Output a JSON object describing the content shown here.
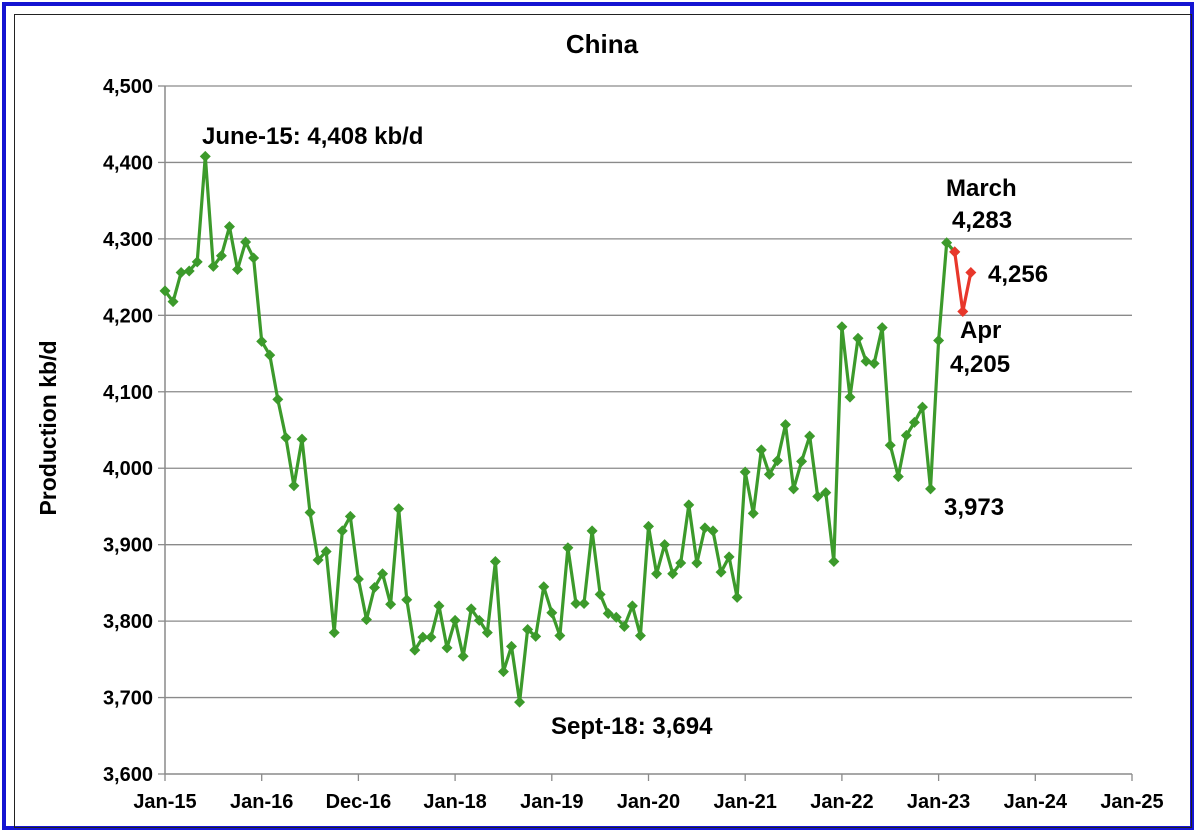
{
  "chart_data": {
    "type": "line",
    "title": "China",
    "xlabel": "",
    "ylabel": "Production kb/d",
    "ylim": [
      3600,
      4500
    ],
    "yticks": [
      "3,600",
      "3,700",
      "3,800",
      "3,900",
      "4,000",
      "4,100",
      "4,200",
      "4,300",
      "4,400",
      "4,500"
    ],
    "xticks": [
      "Jan-15",
      "Jan-16",
      "Dec-16",
      "Jan-18",
      "Jan-19",
      "Jan-20",
      "Jan-21",
      "Jan-22",
      "Jan-23",
      "Jan-24",
      "Jan-25"
    ],
    "xlim": [
      "2015-01",
      "2025-01"
    ],
    "grid": "horizontal",
    "colors": {
      "main": "#3c9a2b",
      "recent": "#e8372b",
      "frame": "#1414d2"
    },
    "series": [
      {
        "color": "#3c9a2b",
        "marker": "diamond",
        "x": [
          "2015-01",
          "2015-02",
          "2015-03",
          "2015-04",
          "2015-05",
          "2015-06",
          "2015-07",
          "2015-08",
          "2015-09",
          "2015-10",
          "2015-11",
          "2015-12",
          "2016-01",
          "2016-02",
          "2016-03",
          "2016-04",
          "2016-05",
          "2016-06",
          "2016-07",
          "2016-08",
          "2016-09",
          "2016-10",
          "2016-11",
          "2016-12",
          "2017-01",
          "2017-02",
          "2017-03",
          "2017-04",
          "2017-05",
          "2017-06",
          "2017-07",
          "2017-08",
          "2017-09",
          "2017-10",
          "2017-11",
          "2017-12",
          "2018-01",
          "2018-02",
          "2018-03",
          "2018-04",
          "2018-05",
          "2018-06",
          "2018-07",
          "2018-08",
          "2018-09",
          "2018-10",
          "2018-11",
          "2018-12",
          "2019-01",
          "2019-02",
          "2019-03",
          "2019-04",
          "2019-05",
          "2019-06",
          "2019-07",
          "2019-08",
          "2019-09",
          "2019-10",
          "2019-11",
          "2019-12",
          "2020-01",
          "2020-02",
          "2020-03",
          "2020-04",
          "2020-05",
          "2020-06",
          "2020-07",
          "2020-08",
          "2020-09",
          "2020-10",
          "2020-11",
          "2020-12",
          "2021-01",
          "2021-02",
          "2021-03",
          "2021-04",
          "2021-05",
          "2021-06",
          "2021-07",
          "2021-08",
          "2021-09",
          "2021-10",
          "2021-11",
          "2021-12",
          "2022-01",
          "2022-02",
          "2022-03",
          "2022-04",
          "2022-05",
          "2022-06",
          "2022-07",
          "2022-08",
          "2022-09",
          "2022-10",
          "2022-11",
          "2022-12",
          "2023-01",
          "2023-02",
          "2023-03"
        ],
        "y": [
          4232,
          4218,
          4256,
          4258,
          4270,
          4408,
          4264,
          4278,
          4316,
          4260,
          4296,
          4275,
          4166,
          4148,
          4090,
          4040,
          3977,
          4038,
          3942,
          3880,
          3891,
          3785,
          3918,
          3937,
          3855,
          3802,
          3844,
          3862,
          3822,
          3947,
          3828,
          3762,
          3779,
          3779,
          3820,
          3765,
          3801,
          3754,
          3816,
          3801,
          3785,
          3878,
          3734,
          3767,
          3694,
          3789,
          3780,
          3845,
          3811,
          3781,
          3896,
          3823,
          3823,
          3918,
          3835,
          3810,
          3805,
          3793,
          3820,
          3781,
          3924,
          3862,
          3900,
          3862,
          3876,
          3952,
          3876,
          3922,
          3918,
          3864,
          3884,
          3831,
          3995,
          3941,
          4024,
          3992,
          4010,
          4057,
          3973,
          4009,
          4042,
          3963,
          3968,
          3878,
          4185,
          4093,
          4170,
          4140,
          4137,
          4184,
          4030,
          3989,
          4043,
          4060,
          4080,
          3973,
          4167,
          4295,
          4283
        ]
      },
      {
        "color": "#e8372b",
        "marker": "diamond",
        "x": [
          "2023-03",
          "2023-04",
          "2023-05"
        ],
        "y": [
          4283,
          4205,
          4256
        ]
      }
    ],
    "annotations": [
      {
        "text": "June-15: 4,408 kb/d",
        "x": "2015-06",
        "y": 4408
      },
      {
        "text": "March",
        "x": "2023-03",
        "y": 4283
      },
      {
        "text": "4,283",
        "x": "2023-03",
        "y": 4283
      },
      {
        "text": "4,256",
        "x": "2023-05",
        "y": 4256
      },
      {
        "text": "Apr",
        "x": "2023-04",
        "y": 4205
      },
      {
        "text": "4,205",
        "x": "2023-04",
        "y": 4205
      },
      {
        "text": "3,973",
        "x": "2022-12",
        "y": 3973
      },
      {
        "text": "Sept-18: 3,694",
        "x": "2018-09",
        "y": 3694
      }
    ]
  }
}
